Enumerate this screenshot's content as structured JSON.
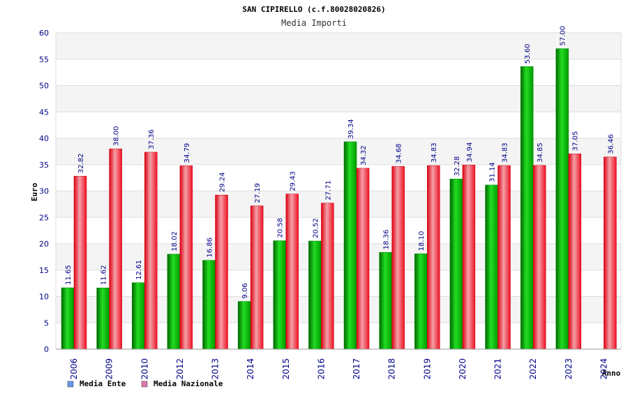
{
  "chart_data": {
    "type": "bar",
    "title": "SAN CIPIRELLO (c.f.80028020826)",
    "subtitle": "Media Importi",
    "xlabel": "Anno",
    "ylabel": "Euro",
    "ylim": [
      0,
      60
    ],
    "yticks": [
      "0",
      "5",
      "10",
      "15",
      "20",
      "25",
      "30",
      "35",
      "40",
      "45",
      "50",
      "55",
      "60"
    ],
    "grid": true,
    "legend_position": "bottom-left",
    "categories": [
      "2006",
      "2009",
      "2010",
      "2012",
      "2013",
      "2014",
      "2015",
      "2016",
      "2017",
      "2018",
      "2019",
      "2020",
      "2021",
      "2022",
      "2023",
      "2024"
    ],
    "series": [
      {
        "name": "Media Ente",
        "color": "#00aa00",
        "legend_color": "#6699ee",
        "values": [
          11.65,
          11.62,
          12.61,
          18.02,
          16.86,
          9.06,
          20.58,
          20.52,
          39.34,
          18.36,
          18.1,
          32.28,
          31.14,
          53.6,
          57.0,
          null
        ],
        "labels": [
          "11.65",
          "11.62",
          "12.61",
          "18.02",
          "16.86",
          "9.06",
          "20.58",
          "20.52",
          "39.34",
          "18.36",
          "18.10",
          "32.28",
          "31.14",
          "53.60",
          "57.00",
          ""
        ]
      },
      {
        "name": "Media Nazionale",
        "color": "#ee1122",
        "legend_color": "#dd77aa",
        "values": [
          32.82,
          38.0,
          37.36,
          34.79,
          29.24,
          27.19,
          29.43,
          27.71,
          34.32,
          34.68,
          34.83,
          34.94,
          34.83,
          34.85,
          37.05,
          36.46
        ],
        "labels": [
          "32.82",
          "38.00",
          "37.36",
          "34.79",
          "29.24",
          "27.19",
          "29.43",
          "27.71",
          "34.32",
          "34.68",
          "34.83",
          "34.94",
          "34.83",
          "34.85",
          "37.05",
          "36.46"
        ]
      }
    ]
  }
}
